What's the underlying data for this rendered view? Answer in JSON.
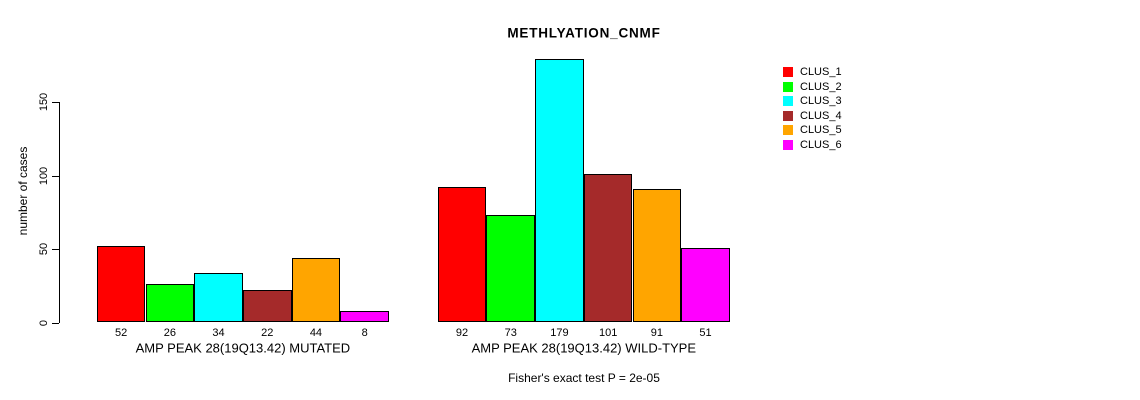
{
  "chart_data": {
    "type": "bar",
    "title": "METHLYATION_CNMF",
    "ylabel": "number of cases",
    "ylim": [
      0,
      180
    ],
    "yticks": [
      0,
      50,
      100,
      150
    ],
    "grid": false,
    "legend_position": "top-right",
    "legend": [
      "CLUS_1",
      "CLUS_2",
      "CLUS_3",
      "CLUS_4",
      "CLUS_5",
      "CLUS_6"
    ],
    "series_colors": [
      "#FF0000",
      "#00FF00",
      "#00FFFF",
      "#A52A2A",
      "#FFA500",
      "#FF00FF"
    ],
    "bar_border_color": "#000000",
    "groups": [
      {
        "label": "AMP PEAK 28(19Q13.42) MUTATED",
        "values": [
          52,
          26,
          34,
          22,
          44,
          8
        ]
      },
      {
        "label": "AMP PEAK 28(19Q13.42) WILD-TYPE",
        "values": [
          92,
          73,
          179,
          101,
          91,
          51
        ]
      }
    ],
    "footnote": "Fisher's exact test P = 2e-05"
  }
}
